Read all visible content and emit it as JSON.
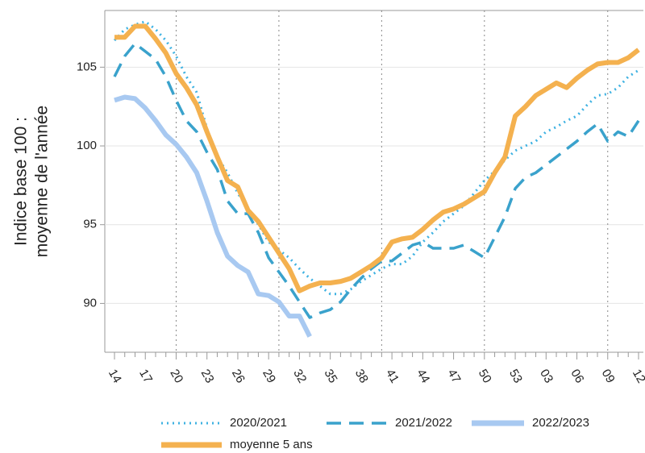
{
  "chart_data": {
    "type": "line",
    "ylabel": [
      "Indice base 100 :",
      "moyenne de l'année"
    ],
    "categories": [
      "14",
      null,
      null,
      "17",
      null,
      null,
      "20",
      null,
      null,
      "23",
      null,
      null,
      "26",
      null,
      null,
      "29",
      null,
      null,
      "32",
      null,
      null,
      "35",
      null,
      null,
      "38",
      null,
      null,
      "41",
      null,
      null,
      "44",
      null,
      null,
      "47",
      null,
      null,
      "50",
      null,
      null,
      "53",
      null,
      null,
      "03",
      null,
      null,
      "06",
      null,
      null,
      "09",
      null,
      null,
      "12"
    ],
    "ylim": [
      86.9,
      108.6
    ],
    "yticks": [
      90,
      95,
      100,
      105
    ],
    "grid": true,
    "series": [
      {
        "name": "2020/2021",
        "color": "#3fb2e2",
        "line_style": "dotted",
        "values": [
          106.7,
          107.4,
          107.7,
          107.9,
          107.4,
          106.7,
          105.7,
          104.4,
          103.4,
          101.1,
          99.3,
          98.3,
          97.0,
          96.0,
          95.0,
          93.9,
          93.4,
          92.9,
          92.2,
          91.6,
          91.1,
          90.6,
          90.6,
          90.9,
          91.4,
          91.8,
          92.2,
          92.5,
          92.5,
          93.0,
          93.9,
          94.5,
          95.2,
          95.7,
          96.2,
          97.0,
          97.8,
          98.4,
          99.1,
          99.7,
          100.0,
          100.3,
          100.9,
          101.2,
          101.6,
          101.9,
          102.6,
          103.2,
          103.3,
          103.7,
          104.4,
          104.8
        ]
      },
      {
        "name": "2021/2022",
        "color": "#3aa2cc",
        "line_style": "dashed",
        "values": [
          104.4,
          105.7,
          106.5,
          106.0,
          105.5,
          104.4,
          102.9,
          101.6,
          100.9,
          99.6,
          98.5,
          96.5,
          95.7,
          95.7,
          94.5,
          92.9,
          92.0,
          91.1,
          90.1,
          89.1,
          89.4,
          89.6,
          90.1,
          90.9,
          91.6,
          92.2,
          92.7,
          92.7,
          93.2,
          93.7,
          93.9,
          93.5,
          93.5,
          93.5,
          93.7,
          93.3,
          92.9,
          94.2,
          95.5,
          97.3,
          98.0,
          98.3,
          98.8,
          99.3,
          99.8,
          100.3,
          100.9,
          101.4,
          100.3,
          100.9,
          100.6,
          101.6
        ]
      },
      {
        "name": "2022/2023",
        "color": "#a8c9f1",
        "line_style": "solid",
        "values": [
          102.9,
          103.1,
          103.0,
          102.4,
          101.6,
          100.7,
          100.1,
          99.3,
          98.3,
          96.5,
          94.5,
          93.0,
          92.4,
          92.0,
          90.6,
          90.5,
          90.1,
          89.2,
          89.2,
          87.9,
          null,
          null,
          null,
          null,
          null,
          null,
          null,
          null,
          null,
          null,
          null,
          null,
          null,
          null,
          null,
          null,
          null,
          null,
          null,
          null,
          null,
          null,
          null,
          null,
          null,
          null,
          null,
          null,
          null,
          null,
          null,
          null
        ]
      },
      {
        "name": "moyenne 5 ans",
        "color": "#f4b14f",
        "line_style": "solid",
        "values": [
          106.9,
          106.9,
          107.6,
          107.6,
          106.8,
          105.9,
          104.6,
          103.7,
          102.6,
          100.9,
          99.3,
          97.8,
          97.4,
          95.9,
          95.2,
          94.2,
          93.2,
          92.2,
          90.8,
          91.1,
          91.3,
          91.3,
          91.4,
          91.6,
          92.0,
          92.4,
          92.9,
          93.9,
          94.1,
          94.2,
          94.7,
          95.3,
          95.8,
          96.0,
          96.3,
          96.7,
          97.1,
          98.3,
          99.3,
          101.9,
          102.5,
          103.2,
          103.6,
          104.0,
          103.7,
          104.3,
          104.8,
          105.2,
          105.3,
          105.3,
          105.6,
          106.1
        ]
      }
    ]
  }
}
